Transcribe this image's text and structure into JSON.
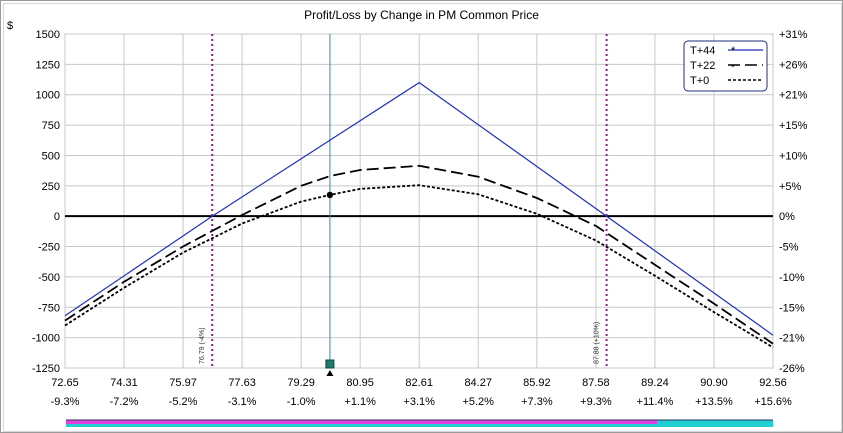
{
  "chart_data": {
    "type": "line",
    "title": "Profit/Loss by Change in PM Common Price",
    "ylabel": "$",
    "ylim": [
      -1250,
      1500
    ],
    "y_ticks": [
      1500,
      1250,
      1000,
      750,
      500,
      250,
      0,
      -250,
      -500,
      -750,
      -1000,
      -1250
    ],
    "y2_ticks": [
      "+31%",
      "+26%",
      "+21%",
      "+15%",
      "+10%",
      "+5%",
      "0%",
      "-5%",
      "-10%",
      "-15%",
      "-21%",
      "-26%"
    ],
    "xlim": [
      72.65,
      92.56
    ],
    "x_ticks": [
      72.65,
      74.31,
      75.97,
      77.63,
      79.29,
      80.95,
      82.61,
      84.27,
      85.92,
      87.58,
      89.24,
      90.9,
      92.56
    ],
    "x_tick_labels": [
      "72.65",
      "74.31",
      "75.97",
      "77.63",
      "79.29",
      "80.95",
      "82.61",
      "84.27",
      "85.92",
      "87.58",
      "89.24",
      "90.90",
      "92.56"
    ],
    "x2_tick_labels": [
      "-9.3%",
      "-7.2%",
      "-5.2%",
      "-3.1%",
      "-1.0%",
      "+1.1%",
      "+3.1%",
      "+5.2%",
      "+7.3%",
      "+9.3%",
      "+11.4%",
      "+13.5%",
      "+15.6%"
    ],
    "grid": true,
    "legend_position": "top-right",
    "current_price": 80.1,
    "current_marker_value": 175,
    "markers": [
      {
        "x": 76.79,
        "label": "76.79 (-4%)"
      },
      {
        "x": 87.88,
        "label": "87.88 (+10%)"
      }
    ],
    "series": [
      {
        "name": "T+44",
        "legend_sample": "*",
        "style": "solid",
        "color": "#1f2fbf",
        "x": [
          72.65,
          76.79,
          82.61,
          87.88,
          92.56
        ],
        "y": [
          -820,
          0,
          1100,
          0,
          -980
        ]
      },
      {
        "name": "T+22",
        "legend_sample": "-",
        "style": "dashed",
        "color": "#000000",
        "x": [
          72.65,
          74.31,
          75.97,
          77.63,
          79.29,
          80.1,
          80.95,
          82.61,
          84.27,
          85.92,
          87.58,
          89.24,
          90.9,
          92.56
        ],
        "y": [
          -860,
          -540,
          -250,
          10,
          250,
          330,
          380,
          415,
          325,
          150,
          -80,
          -400,
          -720,
          -1050
        ]
      },
      {
        "name": "T+0",
        "legend_sample": "",
        "style": "dotted",
        "color": "#000000",
        "x": [
          72.65,
          74.31,
          75.97,
          77.63,
          79.29,
          80.1,
          80.95,
          82.61,
          84.27,
          85.92,
          87.58,
          89.24,
          90.9,
          92.56
        ],
        "y": [
          -900,
          -590,
          -300,
          -60,
          120,
          175,
          225,
          255,
          180,
          20,
          -200,
          -490,
          -790,
          -1080
        ]
      }
    ]
  },
  "colors": {
    "grid": "#c8c8c8",
    "zero_line": "#000000",
    "current_line": "#2b8fb8",
    "marker_line": "#8b1a8b",
    "bar_magenta": "#e040e0",
    "bar_cyan": "#20d0d0",
    "bar_border": "#303060",
    "current_marker": "#1f7a6a"
  }
}
